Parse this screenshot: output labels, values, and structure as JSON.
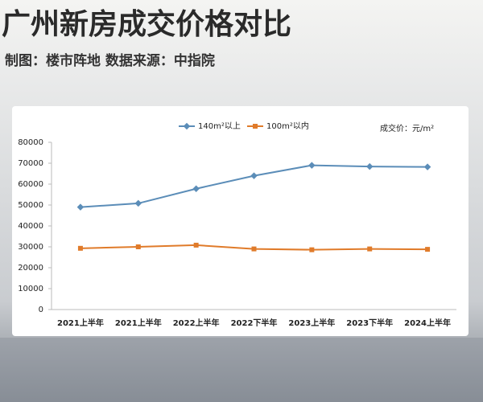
{
  "title": "广州新房成交价格对比",
  "subtitle": "制图：楼市阵地  数据来源：中指院",
  "chart_data": {
    "type": "line",
    "unit_note": "成交价：元/m²",
    "categories": [
      "2021上半年",
      "2021上半年",
      "2022上半年",
      "2022下半年",
      "2023上半年",
      "2023下半年",
      "2024上半年"
    ],
    "series": [
      {
        "name": "140m²以上",
        "color": "#5b8db8",
        "values": [
          49000,
          50800,
          57800,
          64000,
          69000,
          68400,
          68200
        ]
      },
      {
        "name": "100m²以内",
        "color": "#e07b2a",
        "values": [
          29300,
          30000,
          30800,
          29000,
          28600,
          29000,
          28800
        ]
      }
    ],
    "ylim": [
      0,
      80000
    ],
    "yticks": [
      0,
      10000,
      20000,
      30000,
      40000,
      50000,
      60000,
      70000,
      80000
    ],
    "grid": false
  }
}
